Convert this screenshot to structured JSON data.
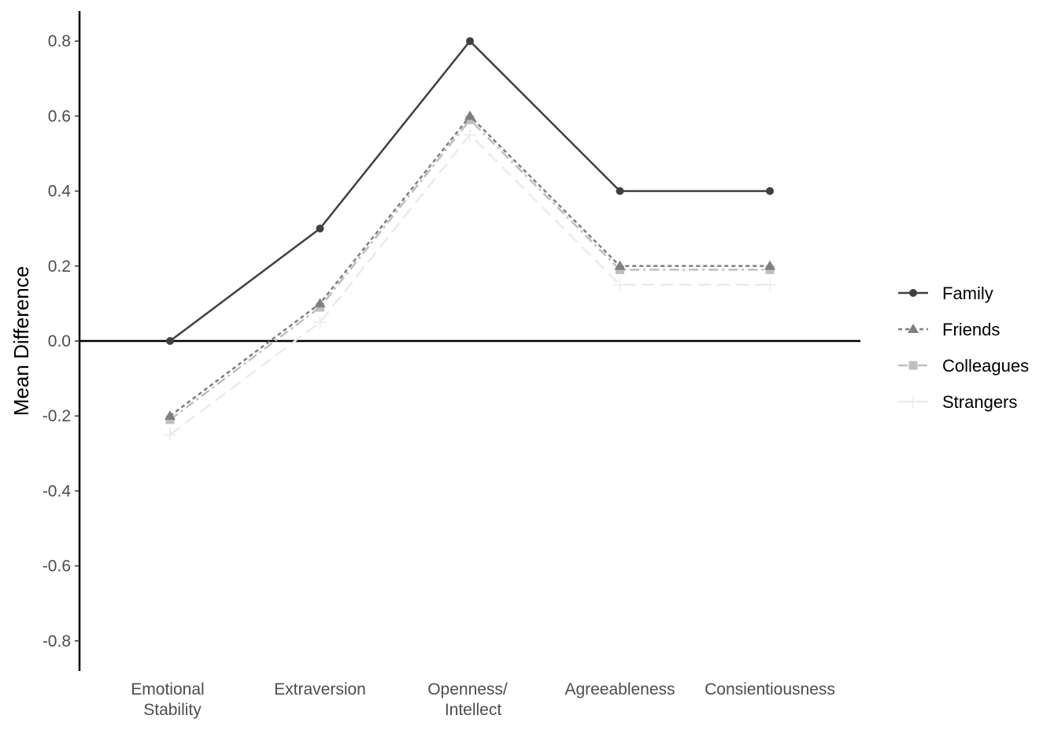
{
  "chart_data": {
    "type": "line",
    "ylabel": "Mean Difference",
    "xlabel": "",
    "ylim": [
      -0.88,
      0.88
    ],
    "y_ticks": [
      0.8,
      0.6,
      0.4,
      0.2,
      0.0,
      -0.2,
      -0.4,
      -0.6,
      -0.8
    ],
    "y_tick_labels": [
      "0.8",
      "0.6",
      "0.4",
      "0.2",
      "0.0",
      "-0.2",
      "-0.4",
      "-0.6",
      "-0.8"
    ],
    "categories": [
      [
        "Emotional",
        "Stability"
      ],
      [
        "Extraversion"
      ],
      [
        "Openness/",
        "Intellect"
      ],
      [
        "Agreeableness"
      ],
      [
        "Consientiousness"
      ]
    ],
    "reference_line": 0.0,
    "legend_position": "right",
    "grid": false,
    "series": [
      {
        "name": "Family",
        "values": [
          0.0,
          0.3,
          0.8,
          0.4,
          0.4
        ],
        "color": "#404040",
        "dash": "solid",
        "marker": "circle"
      },
      {
        "name": "Friends",
        "values": [
          -0.2,
          0.1,
          0.6,
          0.2,
          0.2
        ],
        "color": "#7f7f7f",
        "dash": "dotted",
        "marker": "triangle"
      },
      {
        "name": "Colleagues",
        "values": [
          -0.21,
          0.09,
          0.59,
          0.19,
          0.19
        ],
        "color": "#bfbfbf",
        "dash": "dashdot",
        "marker": "square"
      },
      {
        "name": "Strangers",
        "values": [
          -0.25,
          0.05,
          0.55,
          0.15,
          0.15
        ],
        "color": "#ebebeb",
        "dash": "longdash",
        "marker": "plus"
      }
    ]
  }
}
